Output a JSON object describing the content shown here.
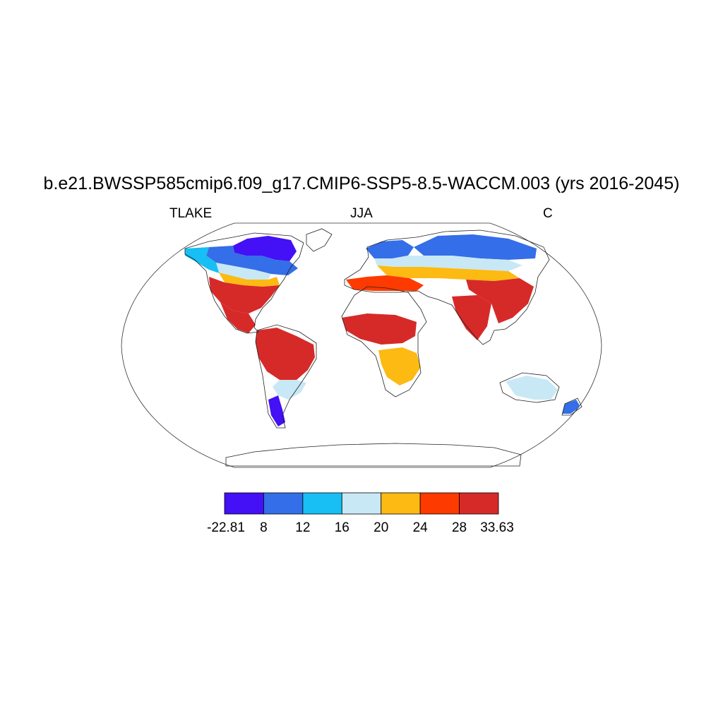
{
  "title": "b.e21.BWSSP585cmip6.f09_g17.CMIP6-SSP5-8.5-WACCM.003 (yrs 2016-2045)",
  "subtitle_left": "TLAKE",
  "subtitle_center": "JJA",
  "subtitle_right": "C",
  "colorbar": {
    "colors": [
      "#4410f5",
      "#346ee8",
      "#17bff4",
      "#c9e8f6",
      "#fcba12",
      "#fd3a00",
      "#d62a29"
    ],
    "labels": [
      "-22.81",
      "8",
      "12",
      "16",
      "20",
      "24",
      "28",
      "33.63"
    ]
  },
  "map": {
    "projection": "Robinson",
    "regions": [
      {
        "name": "canada-north",
        "color": "#4410f5"
      },
      {
        "name": "canada-mid",
        "color": "#346ee8"
      },
      {
        "name": "canada-south",
        "color": "#17bff4"
      },
      {
        "name": "great-plains",
        "color": "#c9e8f6"
      },
      {
        "name": "usa-north",
        "color": "#fcba12"
      },
      {
        "name": "usa-east",
        "color": "#d62a29"
      },
      {
        "name": "mexico",
        "color": "#d62a29"
      },
      {
        "name": "amazon",
        "color": "#d62a29"
      },
      {
        "name": "argentina",
        "color": "#c9e8f6"
      },
      {
        "name": "patagonia",
        "color": "#4410f5"
      },
      {
        "name": "scandinavia",
        "color": "#346ee8"
      },
      {
        "name": "siberia",
        "color": "#346ee8"
      },
      {
        "name": "russia-south",
        "color": "#c9e8f6"
      },
      {
        "name": "central-asia",
        "color": "#fcba12"
      },
      {
        "name": "mediterranean",
        "color": "#fd3a00"
      },
      {
        "name": "india",
        "color": "#d62a29"
      },
      {
        "name": "china",
        "color": "#d62a29"
      },
      {
        "name": "sahel",
        "color": "#d62a29"
      },
      {
        "name": "southern-africa",
        "color": "#fcba12"
      },
      {
        "name": "australia-east",
        "color": "#c9e8f6"
      },
      {
        "name": "new-zealand",
        "color": "#346ee8"
      }
    ]
  }
}
